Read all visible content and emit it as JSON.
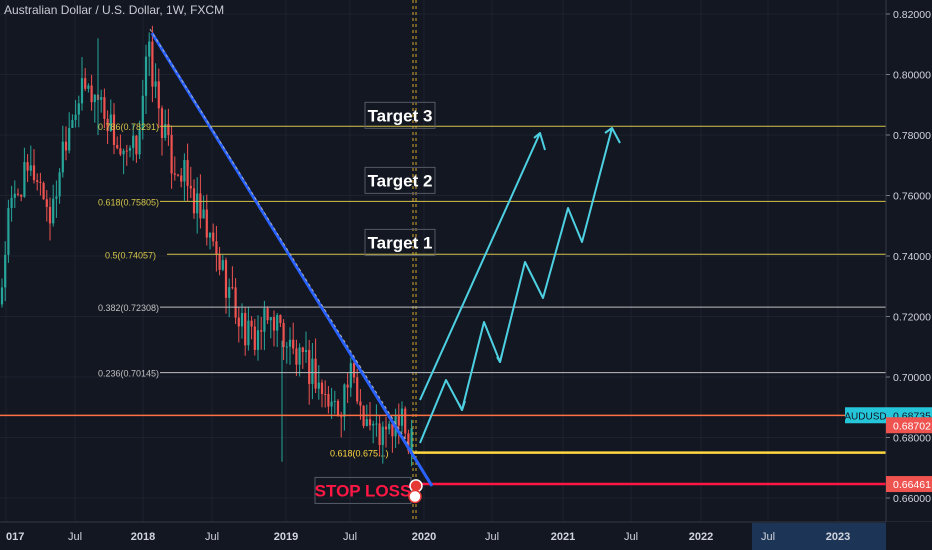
{
  "header": {
    "title": "Australian Dollar / U.S. Dollar, 1W, FXCM"
  },
  "chart_data": {
    "type": "candlestick",
    "symbol": "AUDUSD",
    "timeframe": "1W",
    "ylim": [
      0.6533,
      0.8245
    ],
    "price_scale": [
      "0.82000",
      "0.80000",
      "0.78000",
      "0.76000",
      "0.74000",
      "0.72000",
      "0.70000",
      "0.68000",
      "0.66000"
    ],
    "time_scale": [
      "017",
      "Jul",
      "2018",
      "Jul",
      "2019",
      "Jul",
      "2020",
      "Jul",
      "2021",
      "Jul",
      "2022",
      "Jul",
      "2023"
    ],
    "price_badges": [
      {
        "label": "AUDUSD",
        "value": "0.68735",
        "color": "#26c6da",
        "price": 0.68735
      },
      {
        "label": "",
        "value": "0.68702",
        "color": "#ef5350",
        "price": 0.68702
      },
      {
        "label": "",
        "value": "0.66461",
        "color": "#ef5350",
        "price": 0.66461
      }
    ],
    "fib_levels": [
      {
        "label": "0.786(0.78291)",
        "price": 0.78291,
        "color": "#d4c44a"
      },
      {
        "label": "0.618(0.75805)",
        "price": 0.75805,
        "color": "#d4c44a"
      },
      {
        "label": "0.5(0.74057)",
        "price": 0.74057,
        "color": "#d4c44a"
      },
      {
        "label": "0.382(0.72308)",
        "price": 0.72308,
        "color": "#c0c0c0"
      },
      {
        "label": "0.236(0.70145)",
        "price": 0.70145,
        "color": "#c0c0c0"
      },
      {
        "label": "0.618(0.675...)",
        "price": 0.675,
        "color": "#ffd740"
      }
    ],
    "annotations": [
      {
        "text": "Target 3",
        "price": 0.7865
      },
      {
        "text": "Target 2",
        "price": 0.765
      },
      {
        "text": "Target 1",
        "price": 0.7445
      },
      {
        "text": "STOP LOSS",
        "price": 0.6625
      }
    ],
    "colors": {
      "up": "#26a69a",
      "down": "#ef5350",
      "trendline": "#2962ff",
      "projection": "#4dd0e1",
      "support": "#ff9800"
    }
  }
}
